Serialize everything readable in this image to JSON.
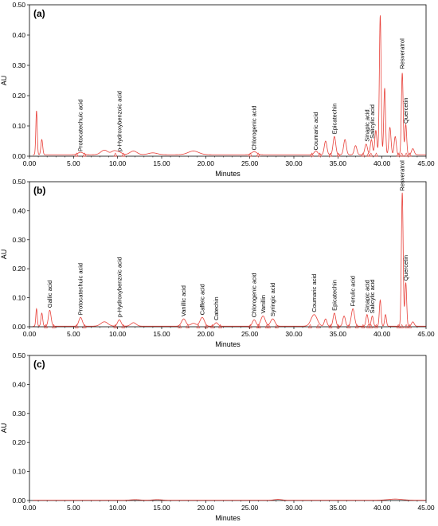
{
  "chart_data": [
    {
      "type": "line",
      "panel_label": "(a)",
      "xlabel": "Minutes",
      "ylabel": "AU",
      "xlim": [
        0,
        45
      ],
      "ylim": [
        0,
        0.5
      ],
      "xticks": [
        "0.00",
        "5.00",
        "10.00",
        "15.00",
        "20.00",
        "25.00",
        "30.00",
        "35.00",
        "40.00",
        "45.00"
      ],
      "yticks": [
        "0.00",
        "0.10",
        "0.20",
        "0.30",
        "0.40",
        "0.50"
      ],
      "color": "#e8413a",
      "baseline": 0.005,
      "peaks": [
        {
          "t": 0.8,
          "h": 0.145,
          "w": 0.08
        },
        {
          "t": 1.4,
          "h": 0.05,
          "w": 0.1
        },
        {
          "t": 5.8,
          "h": 0.008,
          "w": 0.3
        },
        {
          "t": 8.5,
          "h": 0.015,
          "w": 0.4
        },
        {
          "t": 9.6,
          "h": 0.012,
          "w": 0.3
        },
        {
          "t": 10.2,
          "h": 0.008,
          "w": 0.3
        },
        {
          "t": 11.8,
          "h": 0.012,
          "w": 0.4
        },
        {
          "t": 14.0,
          "h": 0.006,
          "w": 0.5
        },
        {
          "t": 18.6,
          "h": 0.012,
          "w": 0.6
        },
        {
          "t": 25.5,
          "h": 0.01,
          "w": 0.3
        },
        {
          "t": 32.5,
          "h": 0.012,
          "w": 0.2
        },
        {
          "t": 33.6,
          "h": 0.045,
          "w": 0.15
        },
        {
          "t": 34.6,
          "h": 0.06,
          "w": 0.15
        },
        {
          "t": 35.8,
          "h": 0.05,
          "w": 0.15
        },
        {
          "t": 37.0,
          "h": 0.03,
          "w": 0.15
        },
        {
          "t": 38.2,
          "h": 0.035,
          "w": 0.15
        },
        {
          "t": 38.8,
          "h": 0.05,
          "w": 0.12
        },
        {
          "t": 39.3,
          "h": 0.08,
          "w": 0.12
        },
        {
          "t": 39.8,
          "h": 0.46,
          "w": 0.1
        },
        {
          "t": 40.3,
          "h": 0.22,
          "w": 0.1
        },
        {
          "t": 40.9,
          "h": 0.09,
          "w": 0.12
        },
        {
          "t": 41.5,
          "h": 0.06,
          "w": 0.12
        },
        {
          "t": 42.3,
          "h": 0.27,
          "w": 0.1
        },
        {
          "t": 42.7,
          "h": 0.1,
          "w": 0.1
        },
        {
          "t": 43.5,
          "h": 0.02,
          "w": 0.15
        }
      ],
      "annotations": [
        {
          "label": "Protocatechuic acid",
          "t": 5.8,
          "y": 0.008
        },
        {
          "label": "p-Hydroxybenzoic acid",
          "t": 10.2,
          "y": 0.008
        },
        {
          "label": "Chlorogenic acid",
          "t": 25.5,
          "y": 0.012
        },
        {
          "label": "Coumaric acid",
          "t": 32.5,
          "y": 0.012
        },
        {
          "label": "Epicatechin",
          "t": 34.6,
          "y": 0.065
        },
        {
          "label": "Sinapic acid",
          "t": 38.3,
          "y": 0.04
        },
        {
          "label": "Salicylic acid",
          "t": 38.9,
          "y": 0.05
        },
        {
          "label": "Resveratrol",
          "t": 42.3,
          "y": 0.28
        },
        {
          "label": "Quercetin",
          "t": 42.7,
          "y": 0.1
        }
      ]
    },
    {
      "type": "line",
      "panel_label": "(b)",
      "xlabel": "Minutes",
      "ylabel": "AU",
      "xlim": [
        0,
        45
      ],
      "ylim": [
        0,
        0.5
      ],
      "xticks": [
        "0.00",
        "5.00",
        "10.00",
        "15.00",
        "20.00",
        "25.00",
        "30.00",
        "35.00",
        "40.00",
        "45.00"
      ],
      "yticks": [
        "0.00",
        "0.10",
        "0.20",
        "0.30",
        "0.40",
        "0.50"
      ],
      "color": "#e8413a",
      "baseline": 0.002,
      "peaks": [
        {
          "t": 0.8,
          "h": 0.06,
          "w": 0.08
        },
        {
          "t": 1.4,
          "h": 0.045,
          "w": 0.1
        },
        {
          "t": 2.3,
          "h": 0.055,
          "w": 0.15
        },
        {
          "t": 5.8,
          "h": 0.03,
          "w": 0.2
        },
        {
          "t": 8.5,
          "h": 0.015,
          "w": 0.4
        },
        {
          "t": 10.2,
          "h": 0.022,
          "w": 0.2
        },
        {
          "t": 11.8,
          "h": 0.012,
          "w": 0.3
        },
        {
          "t": 17.5,
          "h": 0.025,
          "w": 0.25
        },
        {
          "t": 18.6,
          "h": 0.01,
          "w": 0.3
        },
        {
          "t": 19.6,
          "h": 0.03,
          "w": 0.25
        },
        {
          "t": 21.2,
          "h": 0.012,
          "w": 0.2
        },
        {
          "t": 25.5,
          "h": 0.022,
          "w": 0.2
        },
        {
          "t": 26.5,
          "h": 0.035,
          "w": 0.25
        },
        {
          "t": 27.6,
          "h": 0.025,
          "w": 0.25
        },
        {
          "t": 32.3,
          "h": 0.04,
          "w": 0.35
        },
        {
          "t": 33.6,
          "h": 0.025,
          "w": 0.15
        },
        {
          "t": 34.6,
          "h": 0.045,
          "w": 0.15
        },
        {
          "t": 35.7,
          "h": 0.035,
          "w": 0.15
        },
        {
          "t": 36.7,
          "h": 0.06,
          "w": 0.18
        },
        {
          "t": 38.3,
          "h": 0.04,
          "w": 0.12
        },
        {
          "t": 38.9,
          "h": 0.035,
          "w": 0.12
        },
        {
          "t": 39.8,
          "h": 0.09,
          "w": 0.1
        },
        {
          "t": 40.4,
          "h": 0.04,
          "w": 0.1
        },
        {
          "t": 42.3,
          "h": 0.46,
          "w": 0.1
        },
        {
          "t": 42.7,
          "h": 0.15,
          "w": 0.1
        },
        {
          "t": 43.5,
          "h": 0.015,
          "w": 0.15
        }
      ],
      "annotations": [
        {
          "label": "Gallic acid",
          "t": 2.3,
          "y": 0.057
        },
        {
          "label": "Protocatechuic acid",
          "t": 5.8,
          "y": 0.032
        },
        {
          "label": "p-Hydroxybenzoic acid",
          "t": 10.2,
          "y": 0.024
        },
        {
          "label": "Vanillic acid",
          "t": 17.5,
          "y": 0.027
        },
        {
          "label": "Caffeic acid",
          "t": 19.6,
          "y": 0.032
        },
        {
          "label": "Catechin",
          "t": 21.2,
          "y": 0.014
        },
        {
          "label": "Chlorogenic acid",
          "t": 25.5,
          "y": 0.024
        },
        {
          "label": "Vanillin",
          "t": 26.5,
          "y": 0.037
        },
        {
          "label": "Syringic acid",
          "t": 27.6,
          "y": 0.027
        },
        {
          "label": "Coumaric acid",
          "t": 32.3,
          "y": 0.042
        },
        {
          "label": "Epicatechin",
          "t": 34.6,
          "y": 0.047
        },
        {
          "label": "Ferulic acid",
          "t": 36.7,
          "y": 0.062
        },
        {
          "label": "Sinapic acid",
          "t": 38.3,
          "y": 0.042
        },
        {
          "label": "Salicylic acid",
          "t": 38.9,
          "y": 0.037
        },
        {
          "label": "Resveratrol",
          "t": 42.3,
          "y": 0.46
        },
        {
          "label": "Quercetin",
          "t": 42.7,
          "y": 0.15
        }
      ]
    },
    {
      "type": "line",
      "panel_label": "(c)",
      "xlabel": "Minutes",
      "ylabel": "AU",
      "xlim": [
        0,
        45
      ],
      "ylim": [
        0,
        0.5
      ],
      "xticks": [
        "0.00",
        "5.00",
        "10.00",
        "15.00",
        "20.00",
        "25.00",
        "30.00",
        "35.00",
        "40.00",
        "45.00"
      ],
      "yticks": [
        "0.00",
        "0.10",
        "0.20",
        "0.30",
        "0.40",
        "0.50"
      ],
      "color": "#e8413a",
      "baseline": 0.001,
      "peaks": [
        {
          "t": 12.0,
          "h": 0.002,
          "w": 0.5
        },
        {
          "t": 14.5,
          "h": 0.002,
          "w": 0.5
        },
        {
          "t": 28.2,
          "h": 0.003,
          "w": 0.4
        },
        {
          "t": 41.5,
          "h": 0.004,
          "w": 0.8
        }
      ],
      "annotations": []
    }
  ]
}
